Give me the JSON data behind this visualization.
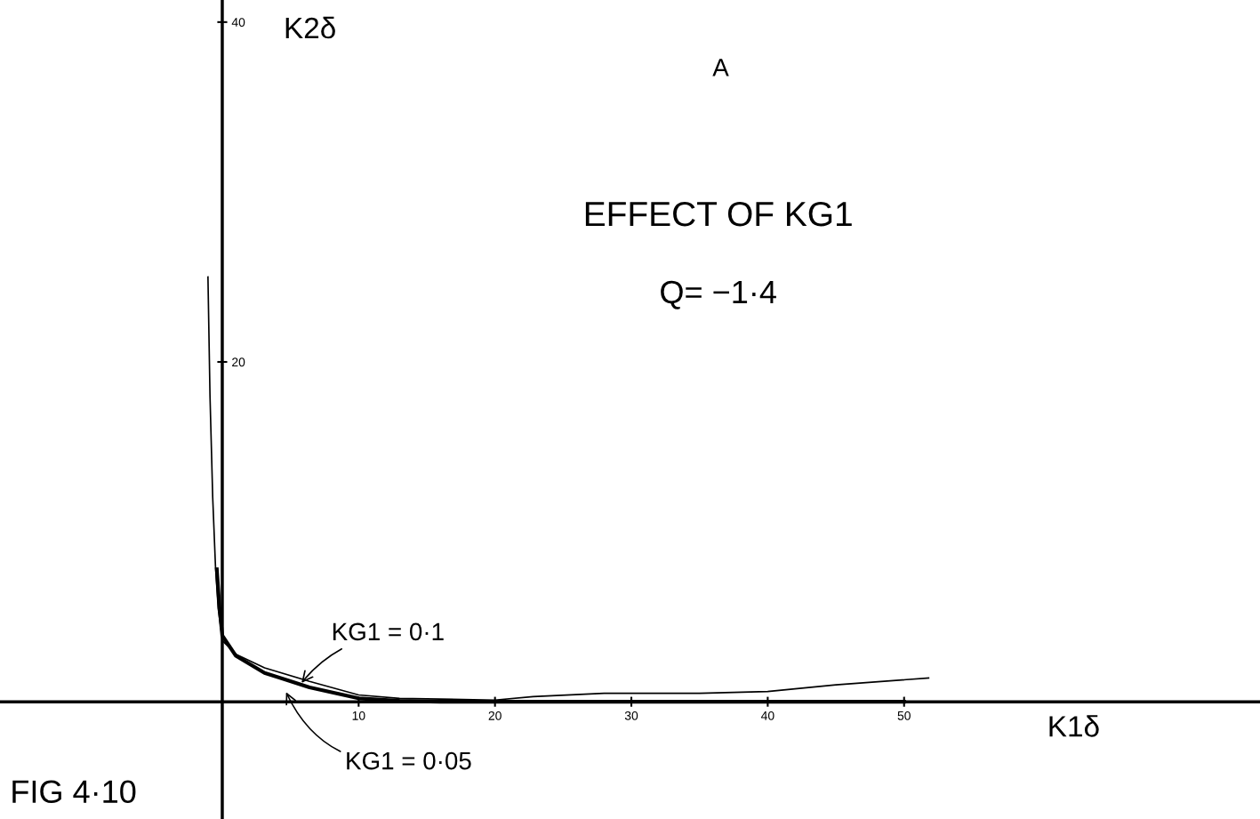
{
  "chart_data": {
    "type": "line",
    "title": "EFFECT OF KG1",
    "subtitle": "Q= −1·4",
    "xlabel": "K1δ",
    "ylabel": "K2δ",
    "annotations": [
      "A",
      "FIG 4·10"
    ],
    "xlim": [
      -16.3,
      76.1
    ],
    "ylim": [
      -6.9,
      41.3
    ],
    "xticks": [
      10,
      20,
      30,
      40,
      50
    ],
    "yticks": [
      20,
      40
    ],
    "grid": false,
    "legend": false,
    "marker": "none",
    "line_style": "solid",
    "series": [
      {
        "name": "KG1 = 0·1",
        "color": "#000000",
        "x": [
          -1.05,
          -0.9,
          -0.7,
          -0.5,
          -0.3,
          -0.1,
          0,
          1,
          3.1,
          6.4,
          10,
          13,
          20,
          22.8,
          28,
          30,
          35,
          40,
          45,
          51.8
        ],
        "values": [
          25,
          18,
          12,
          8,
          5.5,
          4.3,
          3.6,
          2.8,
          2.0,
          1.2,
          0.4,
          0.2,
          0.1,
          0.3,
          0.5,
          0.5,
          0.5,
          0.6,
          1.0,
          1.4
        ]
      },
      {
        "name": "KG1 = 0·05",
        "color": "#000000",
        "x": [
          -0.4,
          -0.2,
          0,
          1,
          3.1,
          6.4,
          10,
          13,
          16,
          20,
          30,
          40,
          50
        ],
        "values": [
          7.8,
          5.5,
          3.9,
          2.7,
          1.7,
          0.85,
          0.2,
          0.05,
          0,
          0,
          0,
          0,
          0
        ]
      }
    ]
  }
}
